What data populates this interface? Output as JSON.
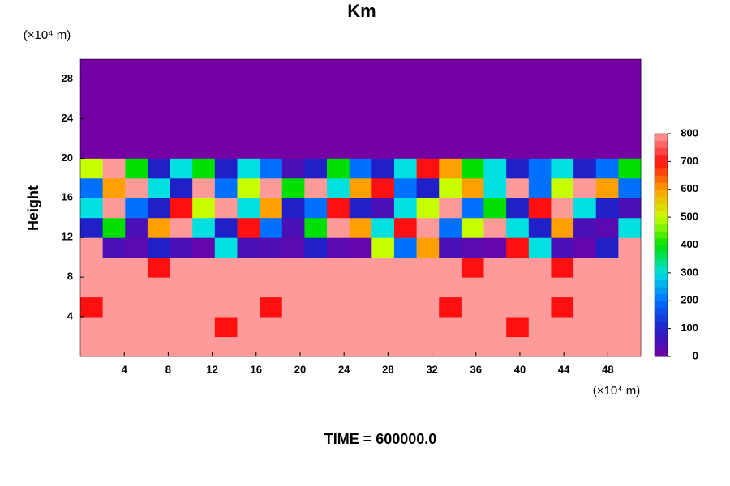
{
  "chart_data": {
    "type": "contour",
    "title": "Km",
    "y_unit": "(×10⁴ m)",
    "x_unit": "(×10⁴ m)",
    "ylabel": "Height",
    "annotation": "TIME = 600000.0",
    "xlim": [
      0,
      51
    ],
    "xticks": [
      4,
      8,
      12,
      16,
      20,
      24,
      28,
      32,
      36,
      40,
      44,
      48
    ],
    "ylim": [
      0,
      30
    ],
    "yticks": [
      4,
      8,
      12,
      16,
      20,
      24,
      28
    ],
    "clim": [
      0,
      800
    ],
    "cticks": [
      0,
      100,
      200,
      300,
      400,
      500,
      600,
      700,
      800
    ],
    "colors": [
      "#7400a4",
      "#2020c8",
      "#0070ff",
      "#00e0e0",
      "#00e000",
      "#c8ff00",
      "#ffa000",
      "#ff1010",
      "#ff9a9a"
    ],
    "z": [
      [
        800,
        800,
        800,
        800,
        800,
        800,
        800,
        800,
        800,
        800,
        800,
        800,
        800,
        800,
        800,
        800,
        800,
        800,
        800,
        800,
        800,
        800,
        800,
        800,
        800
      ],
      [
        800,
        800,
        800,
        800,
        800,
        800,
        700,
        800,
        800,
        800,
        800,
        800,
        800,
        800,
        800,
        800,
        800,
        800,
        800,
        700,
        800,
        800,
        800,
        800,
        800
      ],
      [
        700,
        800,
        800,
        800,
        800,
        800,
        800,
        800,
        700,
        800,
        800,
        800,
        800,
        800,
        800,
        800,
        700,
        800,
        800,
        800,
        800,
        700,
        800,
        800,
        800
      ],
      [
        800,
        800,
        800,
        800,
        800,
        800,
        800,
        800,
        800,
        800,
        800,
        800,
        800,
        800,
        800,
        800,
        800,
        800,
        800,
        800,
        800,
        800,
        800,
        800,
        800
      ],
      [
        800,
        800,
        800,
        700,
        800,
        800,
        800,
        800,
        800,
        800,
        800,
        800,
        800,
        800,
        800,
        800,
        800,
        700,
        800,
        800,
        800,
        700,
        800,
        800,
        800
      ],
      [
        800,
        50,
        30,
        100,
        50,
        20,
        300,
        50,
        40,
        30,
        100,
        30,
        20,
        500,
        200,
        600,
        50,
        30,
        20,
        700,
        300,
        50,
        20,
        100,
        800
      ],
      [
        100,
        400,
        50,
        600,
        800,
        300,
        100,
        700,
        200,
        50,
        400,
        800,
        600,
        300,
        700,
        800,
        200,
        500,
        800,
        300,
        100,
        600,
        50,
        30,
        300
      ],
      [
        300,
        800,
        200,
        100,
        700,
        500,
        800,
        300,
        600,
        100,
        200,
        700,
        100,
        50,
        300,
        500,
        800,
        200,
        400,
        100,
        700,
        800,
        300,
        100,
        50
      ],
      [
        200,
        600,
        800,
        300,
        100,
        800,
        200,
        500,
        800,
        400,
        800,
        300,
        600,
        700,
        200,
        100,
        500,
        600,
        300,
        800,
        200,
        500,
        800,
        600,
        200
      ],
      [
        500,
        800,
        400,
        100,
        300,
        400,
        100,
        300,
        200,
        50,
        100,
        400,
        200,
        100,
        300,
        700,
        600,
        400,
        300,
        100,
        200,
        300,
        100,
        200,
        400
      ],
      [
        0,
        0,
        0,
        0,
        0,
        0,
        0,
        0,
        0,
        0,
        0,
        0,
        0,
        0,
        0,
        0,
        0,
        0,
        0,
        0,
        0,
        0,
        0,
        0,
        0
      ],
      [
        0,
        0,
        0,
        0,
        0,
        0,
        0,
        0,
        0,
        0,
        0,
        0,
        0,
        0,
        0,
        0,
        0,
        0,
        0,
        0,
        0,
        0,
        0,
        0,
        0
      ],
      [
        0,
        0,
        0,
        0,
        0,
        0,
        0,
        0,
        0,
        0,
        0,
        0,
        0,
        0,
        0,
        0,
        0,
        0,
        0,
        0,
        0,
        0,
        0,
        0,
        0
      ],
      [
        0,
        0,
        0,
        0,
        0,
        0,
        0,
        0,
        0,
        0,
        0,
        0,
        0,
        0,
        0,
        0,
        0,
        0,
        0,
        0,
        0,
        0,
        0,
        0,
        0
      ],
      [
        0,
        0,
        0,
        0,
        0,
        0,
        0,
        0,
        0,
        0,
        0,
        0,
        0,
        0,
        0,
        0,
        0,
        0,
        0,
        0,
        0,
        0,
        0,
        0,
        0
      ]
    ]
  }
}
